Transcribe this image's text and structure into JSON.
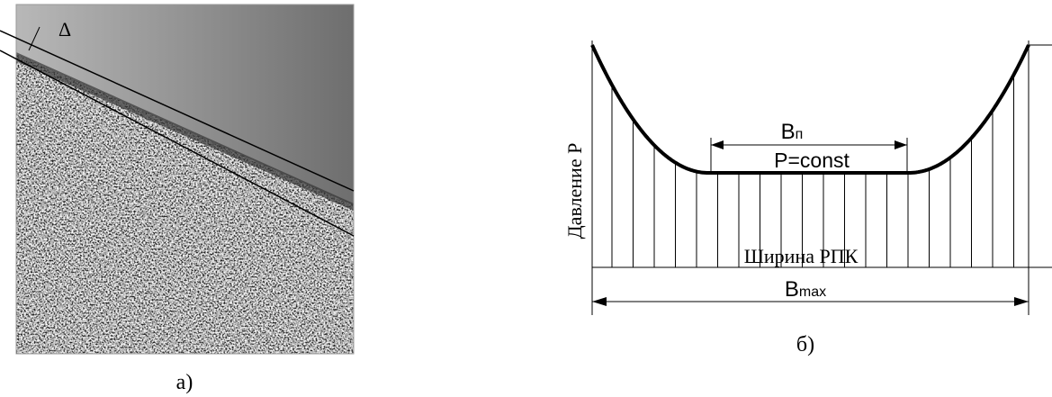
{
  "panel_a": {
    "delta_label": "Δ",
    "caption": "а)"
  },
  "panel_b": {
    "y_axis_label": "Давление P",
    "inner_width_label": {
      "letter": "В",
      "subscript": "п"
    },
    "plateau_label": "P=const",
    "x_axis_label": "Ширина РПК",
    "max_width_label": {
      "letter": "В",
      "subscript": "max"
    },
    "caption": "б)"
  }
}
